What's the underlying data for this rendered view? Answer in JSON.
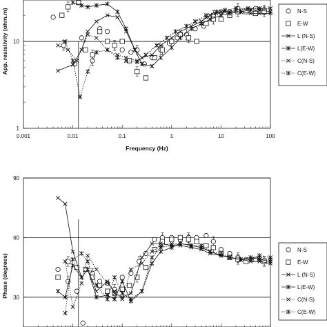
{
  "chart_data": [
    {
      "type": "line",
      "xscale": "log",
      "yscale": "log",
      "xlabel": "Frequency (Hz)",
      "ylabel": "App. resistivity (ohm.m)",
      "xlim": [
        0.001,
        100
      ],
      "ylim": [
        1,
        30
      ],
      "xticks": [
        "0.001",
        "0.01",
        "0.1",
        "1",
        "10",
        "100"
      ],
      "yticks": [
        "1",
        "10"
      ],
      "grid": "horizontal at decades",
      "legend_position": "right",
      "series": [
        {
          "name": "N-S",
          "marker": "circle",
          "line": "none",
          "x": [
            0.004,
            0.0065,
            0.011,
            0.015,
            0.025,
            0.035,
            0.05,
            0.07,
            0.1,
            0.15,
            0.2,
            0.28,
            0.4,
            0.6,
            0.9,
            1.3,
            2,
            3,
            4.5,
            7,
            10,
            15,
            22,
            35,
            50,
            75
          ],
          "y": [
            19,
            9,
            5.5,
            11,
            6,
            14,
            13,
            9,
            8,
            7.5,
            8,
            5.5,
            6.5,
            8,
            9.5,
            11,
            12,
            14,
            15,
            20,
            22,
            22,
            24,
            23,
            24,
            23
          ]
        },
        {
          "name": "E-W",
          "marker": "square",
          "line": "none",
          "x": [
            0.006,
            0.008,
            0.013,
            0.018,
            0.025,
            0.035,
            0.05,
            0.07,
            0.1,
            0.14,
            0.2,
            0.3,
            0.45,
            0.65,
            1,
            1.5,
            2.2,
            3.2,
            5,
            7,
            10,
            15,
            22,
            32,
            50,
            75
          ],
          "y": [
            20,
            25,
            28,
            8,
            7,
            13,
            10,
            9,
            10,
            6,
            4.5,
            3.8,
            6.5,
            8,
            10,
            12,
            11,
            10,
            16,
            18,
            18,
            20,
            22,
            22,
            21,
            22
          ]
        },
        {
          "name": "L (N-S)",
          "marker": "x",
          "line": "solid",
          "x": [
            0.005,
            0.01,
            0.015,
            0.02,
            0.03,
            0.05,
            0.08,
            0.12,
            0.18,
            0.25,
            0.4,
            0.6,
            1,
            1.5,
            2.5,
            4,
            6,
            10,
            15,
            25,
            40,
            60,
            100
          ],
          "y": [
            4.6,
            5.4,
            8,
            13,
            17,
            20,
            19,
            13,
            8,
            6.5,
            7,
            9,
            11,
            13,
            15,
            17,
            20,
            22,
            22,
            22,
            21,
            21,
            21
          ]
        },
        {
          "name": "L(E-W)",
          "marker": "star",
          "line": "solid",
          "x": [
            0.01,
            0.015,
            0.02,
            0.03,
            0.05,
            0.08,
            0.12,
            0.18,
            0.25,
            0.4,
            0.6,
            1,
            1.5,
            2.5,
            4,
            6,
            10,
            15,
            25,
            40,
            60,
            100
          ],
          "y": [
            28,
            26,
            25,
            26,
            27,
            22,
            14,
            8,
            5.5,
            5.2,
            6.5,
            8.5,
            11,
            14,
            16,
            18,
            20,
            21,
            22,
            23,
            23,
            22
          ]
        },
        {
          "name": "C(N-S)",
          "marker": "x",
          "line": "dotted",
          "x": [
            0.005,
            0.008,
            0.012,
            0.02,
            0.03,
            0.05,
            0.08,
            0.12,
            0.2,
            0.3,
            0.5,
            0.8,
            1.2,
            2,
            3,
            5,
            8,
            12,
            20,
            35,
            60,
            100
          ],
          "y": [
            9,
            8,
            6,
            12,
            11,
            8,
            7,
            6.5,
            6,
            7,
            9,
            11,
            13,
            15,
            17,
            19,
            21,
            22,
            23,
            24,
            24,
            24
          ]
        },
        {
          "name": "C(E-W)",
          "marker": "star",
          "line": "dotted",
          "x": [
            0.007,
            0.01,
            0.014,
            0.02,
            0.03,
            0.05,
            0.08,
            0.12,
            0.2,
            0.3,
            0.5,
            0.8,
            1.2,
            2,
            3,
            5,
            8,
            12,
            20,
            35,
            60,
            100
          ],
          "y": [
            10,
            6,
            2.3,
            4.5,
            7.5,
            8,
            6.5,
            6,
            5.8,
            7,
            9,
            11,
            13,
            15,
            17,
            20,
            22,
            23,
            24,
            24,
            24,
            24
          ]
        }
      ]
    },
    {
      "type": "line",
      "xscale": "log",
      "ylabel": "Phase (degrees)",
      "xlim": [
        0.001,
        100
      ],
      "ylim": [
        15,
        90
      ],
      "yticks": [
        "30",
        "60",
        "90"
      ],
      "grid": "horizontal at 30, 60, 90",
      "legend_position": "right",
      "series": [
        {
          "name": "N-S",
          "marker": "circle",
          "line": "none",
          "x": [
            0.005,
            0.008,
            0.012,
            0.016,
            0.025,
            0.035,
            0.05,
            0.07,
            0.1,
            0.15,
            0.22,
            0.3,
            0.45,
            0.65,
            1,
            1.5,
            2.2,
            3.2,
            5,
            7,
            10,
            15,
            22,
            32,
            50,
            75
          ],
          "y": [
            44,
            38,
            33,
            17,
            42,
            38,
            37,
            34,
            40,
            42,
            48,
            52,
            59,
            60,
            60,
            59,
            60,
            60,
            61,
            58,
            54,
            52,
            50,
            49,
            49,
            48
          ]
        },
        {
          "name": "E-W",
          "marker": "square",
          "line": "none",
          "x": [
            0.005,
            0.008,
            0.012,
            0.018,
            0.025,
            0.035,
            0.05,
            0.07,
            0.1,
            0.14,
            0.2,
            0.3,
            0.45,
            0.65,
            1,
            1.5,
            2.2,
            3.2,
            5,
            7,
            10,
            15,
            22,
            32,
            50,
            75
          ],
          "y": [
            40,
            48,
            45,
            44,
            40,
            36,
            33,
            32,
            34,
            36,
            40,
            45,
            54,
            58,
            59,
            60,
            59,
            58,
            56,
            55,
            52,
            50,
            49,
            48,
            49,
            48
          ]
        },
        {
          "name": "L (N-S)",
          "marker": "x",
          "line": "solid",
          "x": [
            0.005,
            0.007,
            0.01,
            0.015,
            0.02,
            0.03,
            0.05,
            0.07,
            0.1,
            0.15,
            0.25,
            0.4,
            0.6,
            1,
            1.5,
            2.5,
            4,
            6,
            10,
            15,
            25,
            40,
            60,
            100
          ],
          "y": [
            80,
            77,
            53,
            40,
            44,
            33,
            38,
            32,
            30,
            32,
            50,
            57,
            57,
            56,
            56,
            55,
            54,
            52,
            51,
            50,
            49,
            48,
            48,
            47
          ]
        },
        {
          "name": "L(E-W)",
          "marker": "star",
          "line": "solid",
          "x": [
            0.005,
            0.007,
            0.01,
            0.015,
            0.02,
            0.03,
            0.05,
            0.07,
            0.1,
            0.15,
            0.25,
            0.4,
            0.6,
            1,
            1.5,
            2.5,
            4,
            6,
            10,
            15,
            25,
            40,
            60,
            100
          ],
          "y": [
            33,
            30,
            46,
            40,
            44,
            30,
            31,
            29,
            38,
            28,
            33,
            47,
            53,
            55,
            57,
            56,
            55,
            53,
            51,
            50,
            49,
            50,
            49,
            48
          ]
        },
        {
          "name": "C(N-S)",
          "marker": "x",
          "line": "dotted",
          "x": [
            0.007,
            0.01,
            0.015,
            0.02,
            0.03,
            0.05,
            0.07,
            0.1,
            0.15,
            0.25,
            0.4,
            0.6,
            1,
            1.5,
            2.5,
            4,
            6,
            10,
            15,
            25,
            40,
            60,
            100
          ],
          "y": [
            48,
            25,
            37,
            51,
            44,
            37,
            33,
            29,
            44,
            47,
            53,
            56,
            57,
            57,
            56,
            55,
            53,
            51,
            50,
            49,
            49,
            50,
            49
          ]
        },
        {
          "name": "C(E-W)",
          "marker": "star",
          "line": "dotted",
          "x": [
            0.007,
            0.01,
            0.015,
            0.02,
            0.03,
            0.05,
            0.07,
            0.1,
            0.15,
            0.25,
            0.4,
            0.6,
            1,
            1.5,
            2.5,
            4,
            6,
            10,
            15,
            25,
            40,
            60,
            100
          ],
          "y": [
            22,
            49,
            52,
            48,
            36,
            29,
            40,
            32,
            29,
            33,
            50,
            55,
            56,
            57,
            56,
            56,
            53,
            52,
            50,
            49,
            49,
            51,
            50
          ]
        }
      ]
    }
  ]
}
